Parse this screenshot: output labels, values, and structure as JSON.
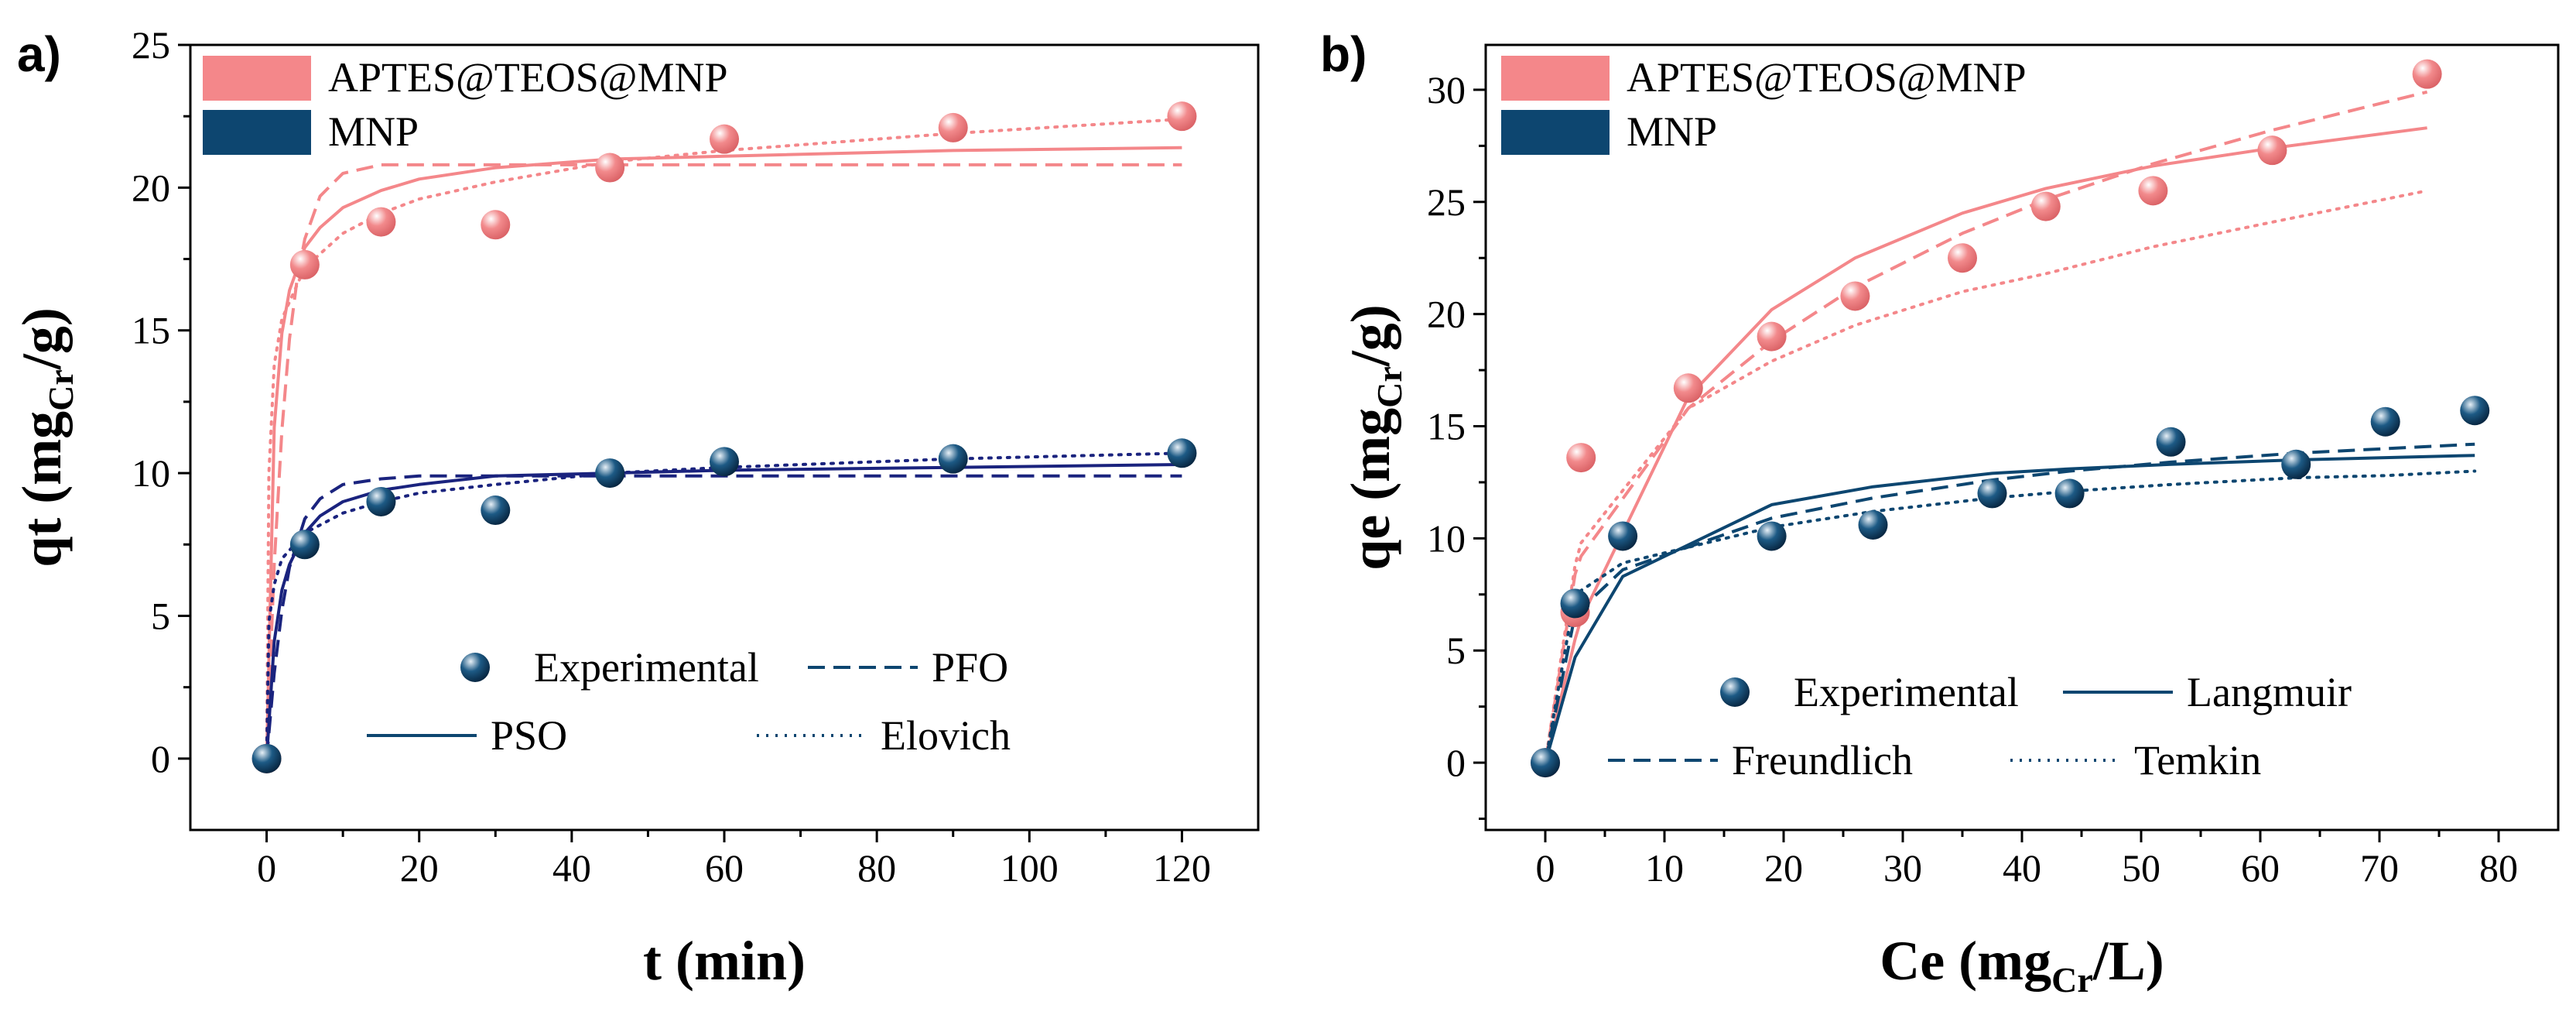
{
  "chart_data": [
    {
      "type": "line",
      "panel_label": "a)",
      "xlabel": "t (min)",
      "ylabel": {
        "prefix": "qt (mg",
        "sub": "Cr",
        "suffix": "/g)"
      },
      "xlim": [
        -10,
        130
      ],
      "ylim": [
        -2.5,
        25
      ],
      "xticks": [
        0,
        20,
        40,
        60,
        80,
        100,
        120
      ],
      "yticks": [
        0,
        5,
        10,
        15,
        20,
        25
      ],
      "color_legend": [
        {
          "label": "APTES@TEOS@MNP",
          "color": "#f4878a"
        },
        {
          "label": "MNP",
          "color": "#0d4670"
        }
      ],
      "style_legend": [
        {
          "label": "Experimental",
          "style": "marker"
        },
        {
          "label": "PFO",
          "style": "dashed"
        },
        {
          "label": "PSO",
          "style": "solid"
        },
        {
          "label": "Elovich",
          "style": "dotted"
        }
      ],
      "experimental": [
        {
          "name": "APTES@TEOS@MNP",
          "color": "#f4878a",
          "x": [
            0,
            5,
            15,
            30,
            45,
            60,
            90,
            120
          ],
          "y": [
            0,
            17.3,
            18.8,
            18.7,
            20.7,
            21.7,
            22.1,
            22.5
          ]
        },
        {
          "name": "MNP",
          "color": "#0d4670",
          "x": [
            0,
            5,
            15,
            30,
            45,
            60,
            90,
            120
          ],
          "y": [
            0,
            7.5,
            9.0,
            8.7,
            10.0,
            10.4,
            10.5,
            10.7
          ]
        }
      ],
      "fits": [
        {
          "name": "PFO",
          "group": "APTES@TEOS@MNP",
          "color": "#f4878a",
          "style": "dashed",
          "x": [
            0,
            1,
            2,
            3,
            4,
            5,
            7,
            10,
            15,
            20,
            30,
            45,
            60,
            90,
            120
          ],
          "y": [
            0,
            6.8,
            11.5,
            14.7,
            16.8,
            18.2,
            19.7,
            20.5,
            20.8,
            20.8,
            20.8,
            20.8,
            20.8,
            20.8,
            20.8
          ]
        },
        {
          "name": "PSO",
          "group": "APTES@TEOS@MNP",
          "color": "#f4878a",
          "style": "solid",
          "x": [
            0,
            1,
            2,
            3,
            5,
            7,
            10,
            15,
            20,
            30,
            45,
            60,
            90,
            120
          ],
          "y": [
            0,
            11.6,
            14.9,
            16.4,
            17.9,
            18.6,
            19.3,
            19.9,
            20.3,
            20.7,
            21.0,
            21.1,
            21.3,
            21.4
          ]
        },
        {
          "name": "Elovich",
          "group": "APTES@TEOS@MNP",
          "color": "#f4878a",
          "style": "dotted",
          "x": [
            0,
            0.3,
            1,
            2,
            5,
            10,
            15,
            20,
            30,
            45,
            60,
            90,
            120
          ],
          "y": [
            0,
            10.0,
            13.8,
            15.4,
            17.2,
            18.4,
            19.1,
            19.6,
            20.2,
            20.9,
            21.3,
            21.9,
            22.4
          ]
        },
        {
          "name": "PFO",
          "group": "MNP",
          "color": "#1a237e",
          "style": "dashed",
          "x": [
            0,
            1,
            2,
            3,
            5,
            7,
            10,
            15,
            20,
            30,
            45,
            60,
            90,
            120
          ],
          "y": [
            0,
            3.0,
            5.2,
            6.7,
            8.4,
            9.1,
            9.6,
            9.8,
            9.9,
            9.9,
            9.9,
            9.9,
            9.9,
            9.9
          ]
        },
        {
          "name": "PSO",
          "group": "MNP",
          "color": "#1a237e",
          "style": "solid",
          "x": [
            0,
            1,
            2,
            3,
            5,
            7,
            10,
            15,
            20,
            30,
            45,
            60,
            90,
            120
          ],
          "y": [
            0,
            4.1,
            5.9,
            6.8,
            7.9,
            8.5,
            9.0,
            9.4,
            9.6,
            9.9,
            10.0,
            10.1,
            10.2,
            10.3
          ]
        },
        {
          "name": "Elovich",
          "group": "MNP",
          "color": "#1a237e",
          "style": "dotted",
          "x": [
            0,
            0.3,
            1,
            2,
            5,
            10,
            15,
            20,
            30,
            45,
            60,
            90,
            120
          ],
          "y": [
            0,
            4.8,
            6.1,
            7.0,
            7.9,
            8.6,
            9.0,
            9.3,
            9.6,
            10.0,
            10.2,
            10.5,
            10.7
          ]
        }
      ]
    },
    {
      "type": "line",
      "panel_label": "b)",
      "xlabel": {
        "prefix": "Ce (mg",
        "sub": "Cr",
        "suffix": "/L)"
      },
      "ylabel": {
        "prefix": "qe (mg",
        "sub": "Cr",
        "suffix": "/g)"
      },
      "xlim": [
        -5,
        85
      ],
      "ylim": [
        -3,
        32
      ],
      "xticks": [
        0,
        10,
        20,
        30,
        40,
        50,
        60,
        70,
        80
      ],
      "yticks": [
        0,
        5,
        10,
        15,
        20,
        25,
        30
      ],
      "color_legend": [
        {
          "label": "APTES@TEOS@MNP",
          "color": "#f4878a"
        },
        {
          "label": "MNP",
          "color": "#0d4670"
        }
      ],
      "style_legend": [
        {
          "label": "Experimental",
          "style": "marker"
        },
        {
          "label": "Langmuir",
          "style": "solid"
        },
        {
          "label": "Freundlich",
          "style": "dashed"
        },
        {
          "label": "Temkin",
          "style": "dotted"
        }
      ],
      "experimental": [
        {
          "name": "APTES@TEOS@MNP",
          "color": "#f4878a",
          "x": [
            0,
            2.5,
            3,
            12,
            19,
            26,
            35,
            42,
            51,
            61,
            74
          ],
          "y": [
            0,
            6.7,
            13.6,
            16.7,
            19.0,
            20.8,
            22.5,
            24.8,
            25.5,
            27.3,
            30.7
          ]
        },
        {
          "name": "MNP",
          "color": "#0d4670",
          "x": [
            0,
            2.5,
            6.5,
            19,
            27.5,
            37.5,
            44,
            52.5,
            63,
            70.5,
            78
          ],
          "y": [
            0,
            7.1,
            10.1,
            10.1,
            10.6,
            12.0,
            12.0,
            14.3,
            13.3,
            15.2,
            15.7
          ]
        }
      ],
      "fits": [
        {
          "name": "Langmuir",
          "group": "APTES@TEOS@MNP",
          "color": "#f4878a",
          "style": "solid",
          "x": [
            0,
            2.5,
            3,
            12,
            19,
            26,
            35,
            42,
            51,
            61,
            74
          ],
          "y": [
            0,
            5.5,
            6.4,
            16.3,
            20.2,
            22.5,
            24.5,
            25.6,
            26.6,
            27.4,
            28.3
          ]
        },
        {
          "name": "Freundlich",
          "group": "APTES@TEOS@MNP",
          "color": "#f4878a",
          "style": "dashed",
          "x": [
            0,
            2.5,
            3,
            12,
            19,
            26,
            35,
            42,
            51,
            61,
            74
          ],
          "y": [
            0,
            8.4,
            9.2,
            15.8,
            18.8,
            21.2,
            23.6,
            25.1,
            26.7,
            28.2,
            29.9
          ]
        },
        {
          "name": "Temkin",
          "group": "APTES@TEOS@MNP",
          "color": "#f4878a",
          "style": "dotted",
          "x": [
            0,
            2.5,
            3,
            12,
            19,
            26,
            35,
            42,
            51,
            61,
            74
          ],
          "y": [
            0,
            8.8,
            9.8,
            15.8,
            17.9,
            19.5,
            21.0,
            21.8,
            23.0,
            24.1,
            25.5
          ]
        },
        {
          "name": "Langmuir",
          "group": "MNP",
          "color": "#0d4670",
          "style": "solid",
          "x": [
            0,
            2.5,
            6.5,
            19,
            27.5,
            37.5,
            44,
            52.5,
            63,
            70.5,
            78
          ],
          "y": [
            0,
            4.7,
            8.3,
            11.5,
            12.3,
            12.9,
            13.1,
            13.3,
            13.5,
            13.6,
            13.7
          ]
        },
        {
          "name": "Freundlich",
          "group": "MNP",
          "color": "#0d4670",
          "style": "dashed",
          "x": [
            0,
            2.5,
            6.5,
            19,
            27.5,
            37.5,
            44,
            52.5,
            63,
            70.5,
            78
          ],
          "y": [
            0,
            6.6,
            8.6,
            10.9,
            11.8,
            12.6,
            13.0,
            13.4,
            13.8,
            14.0,
            14.2
          ]
        },
        {
          "name": "Temkin",
          "group": "MNP",
          "color": "#0d4670",
          "style": "dotted",
          "x": [
            0,
            2.5,
            6.5,
            19,
            27.5,
            37.5,
            44,
            52.5,
            63,
            70.5,
            78
          ],
          "y": [
            0,
            7.5,
            8.9,
            10.5,
            11.2,
            11.8,
            12.1,
            12.4,
            12.7,
            12.8,
            13.0
          ]
        }
      ]
    }
  ]
}
